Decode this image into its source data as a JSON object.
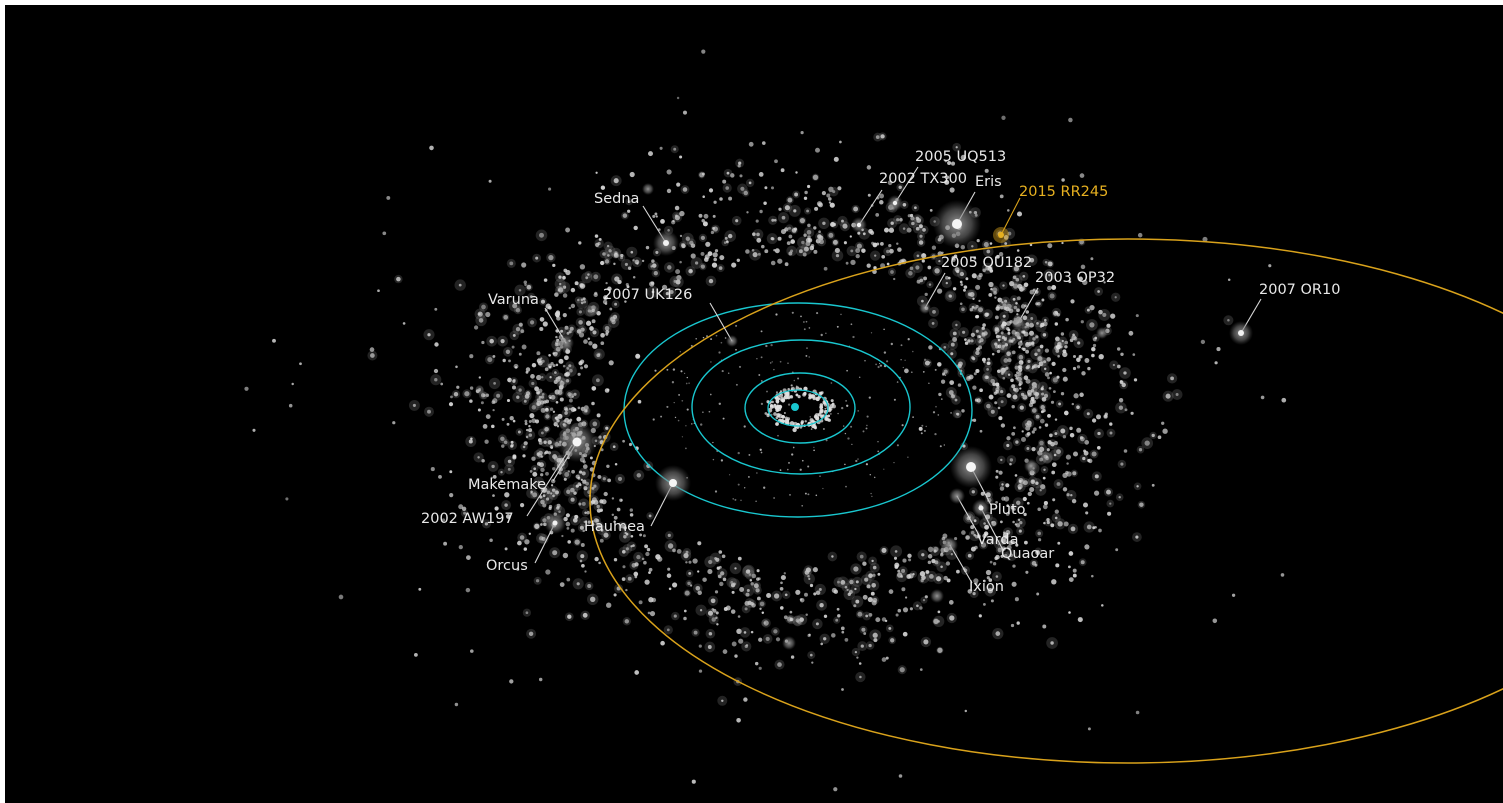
{
  "colors": {
    "background": "#000000",
    "orbit_planets": "#19c7cf",
    "orbit_highlight": "#d9a21b",
    "label_text": "#e8e8e8",
    "label_highlight": "#e6b020",
    "object_glow": "#8a8a8a",
    "object_core": "#f2f2f2",
    "sun": "#19c7cf"
  },
  "highlight_object": {
    "label": "2015 RR245"
  },
  "objects": [
    {
      "id": "sedna",
      "label": "Sedna"
    },
    {
      "id": "2005-uq513",
      "label": "2005 UQ513"
    },
    {
      "id": "2002-tx300",
      "label": "2002 TX300"
    },
    {
      "id": "eris",
      "label": "Eris"
    },
    {
      "id": "2005-qu182",
      "label": "2005 QU182"
    },
    {
      "id": "2003-op32",
      "label": "2003 OP32"
    },
    {
      "id": "2007-or10",
      "label": "2007 OR10"
    },
    {
      "id": "varuna",
      "label": "Varuna"
    },
    {
      "id": "2007-uk126",
      "label": "2007 UK126"
    },
    {
      "id": "makemake",
      "label": "Makemake"
    },
    {
      "id": "2002-aw197",
      "label": "2002 AW197"
    },
    {
      "id": "haumea",
      "label": "Haumea"
    },
    {
      "id": "orcus",
      "label": "Orcus"
    },
    {
      "id": "pluto",
      "label": "Pluto"
    },
    {
      "id": "varda",
      "label": "Varda"
    },
    {
      "id": "quaoar",
      "label": "Quaoar"
    },
    {
      "id": "ixion",
      "label": "Ixion"
    }
  ]
}
